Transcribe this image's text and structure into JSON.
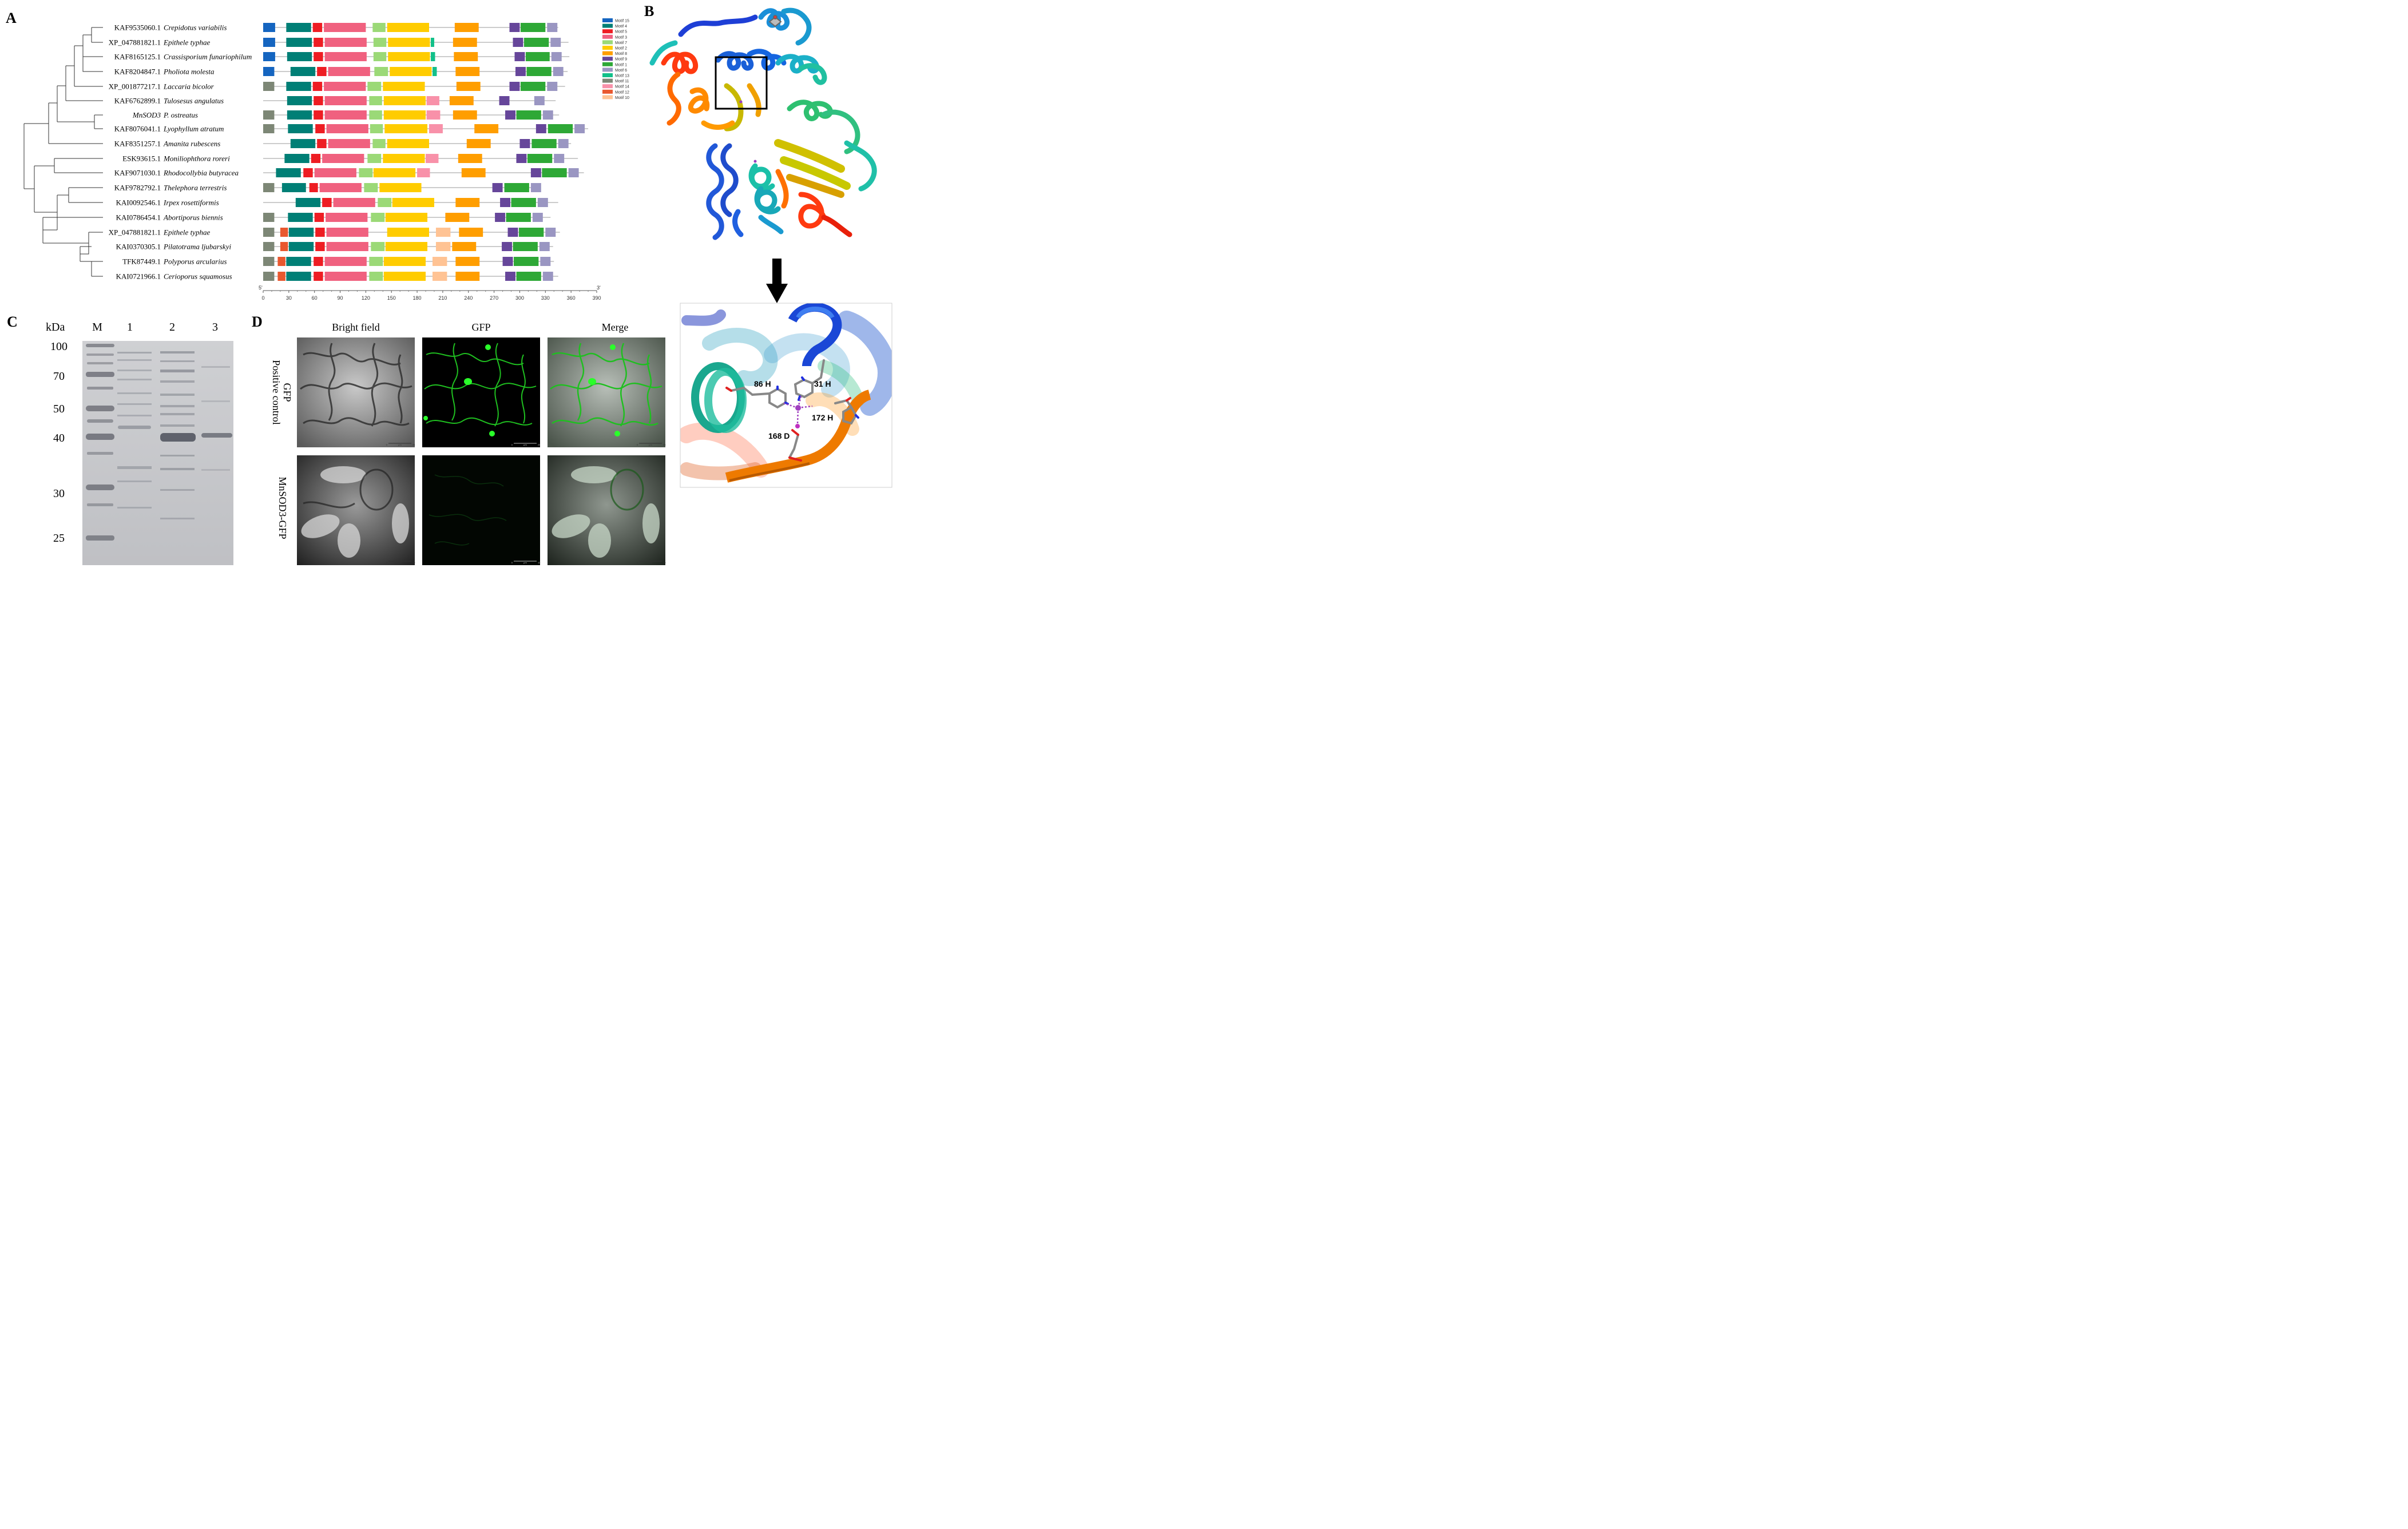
{
  "panels": {
    "A": "A",
    "B": "B",
    "C": "C",
    "D": "D"
  },
  "motif_legend": [
    {
      "label": "Motif 15",
      "color": "#1565c0"
    },
    {
      "label": "Motif 4",
      "color": "#007f76"
    },
    {
      "label": "Motif 5",
      "color": "#ee1d23"
    },
    {
      "label": "Motif 3",
      "color": "#f0617f"
    },
    {
      "label": "Motif 7",
      "color": "#9bd977"
    },
    {
      "label": "Motif 2",
      "color": "#ffcc00"
    },
    {
      "label": "Motif 8",
      "color": "#ff9e00"
    },
    {
      "label": "Motif 9",
      "color": "#66469a"
    },
    {
      "label": "Motif 1",
      "color": "#2ea836"
    },
    {
      "label": "Motif 6",
      "color": "#9a96c2"
    },
    {
      "label": "Motif 13",
      "color": "#12c08a"
    },
    {
      "label": "Motif 11",
      "color": "#7d8776"
    },
    {
      "label": "Motif 14",
      "color": "#f891a9"
    },
    {
      "label": "Motif 12",
      "color": "#e9582f"
    },
    {
      "label": "Motif 10",
      "color": "#ffc394"
    }
  ],
  "species": [
    {
      "acc": "KAF9535060.1",
      "name": "Crepidotus variabilis"
    },
    {
      "acc": "XP_047881821.1",
      "name": "Epithele typhae"
    },
    {
      "acc": "KAF8165125.1",
      "name": "Crassisporium funariophilum"
    },
    {
      "acc": "KAF8204847.1",
      "name": "Pholiota molesta"
    },
    {
      "acc": "XP_001877217.1",
      "name": "Laccaria bicolor"
    },
    {
      "acc": "KAF6762899.1",
      "name": "Tulosesus angulatus"
    },
    {
      "acc": "MnSOD3",
      "name": "P. ostreatus"
    },
    {
      "acc": "KAF8076041.1",
      "name": "Lyophyllum atratum"
    },
    {
      "acc": "KAF8351257.1",
      "name": "Amanita rubescens"
    },
    {
      "acc": "ESK93615.1",
      "name": "Moniliophthora roreri"
    },
    {
      "acc": "KAF9071030.1",
      "name": "Rhodocollybia butyracea"
    },
    {
      "acc": "KAF9782792.1",
      "name": "Thelephora terrestris"
    },
    {
      "acc": "KAI0092546.1",
      "name": "Irpex rosettiformis"
    },
    {
      "acc": "KAI0786454.1",
      "name": "Abortiporus biennis"
    },
    {
      "acc": "XP_047881821.1",
      "name": "Epithele typhae"
    },
    {
      "acc": "KAI0370305.1",
      "name": "Pilatotrama ljubarskyi"
    },
    {
      "acc": "TFK87449.1",
      "name": "Polyporus arcularius"
    },
    {
      "acc": "KAI0721966.1",
      "name": "Cerioporus squamosus"
    }
  ],
  "motif_rows": [
    {
      "end": 345,
      "m": [
        [
          0,
          14,
          "#1565c0"
        ],
        [
          27,
          56,
          "#007f76"
        ],
        [
          58,
          69,
          "#ee1d23"
        ],
        [
          71,
          120,
          "#f0617f"
        ],
        [
          128,
          143,
          "#9bd977"
        ],
        [
          145,
          194,
          "#ffcc00"
        ],
        [
          224,
          252,
          "#ff9e00"
        ],
        [
          288,
          300,
          "#66469a"
        ],
        [
          301,
          330,
          "#2ea836"
        ],
        [
          332,
          344,
          "#9a96c2"
        ]
      ]
    },
    {
      "end": 357,
      "m": [
        [
          0,
          14,
          "#1565c0"
        ],
        [
          27,
          57,
          "#007f76"
        ],
        [
          59,
          70,
          "#ee1d23"
        ],
        [
          72,
          121,
          "#f0617f"
        ],
        [
          129,
          144,
          "#9bd977"
        ],
        [
          146,
          195,
          "#ffcc00"
        ],
        [
          196,
          200,
          "#12c08a"
        ],
        [
          222,
          250,
          "#ff9e00"
        ],
        [
          292,
          304,
          "#66469a"
        ],
        [
          305,
          334,
          "#2ea836"
        ],
        [
          336,
          348,
          "#9a96c2"
        ]
      ]
    },
    {
      "end": 358,
      "m": [
        [
          0,
          14,
          "#1565c0"
        ],
        [
          28,
          57,
          "#007f76"
        ],
        [
          59,
          70,
          "#ee1d23"
        ],
        [
          72,
          121,
          "#f0617f"
        ],
        [
          129,
          144,
          "#9bd977"
        ],
        [
          146,
          195,
          "#ffcc00"
        ],
        [
          196,
          201,
          "#12c08a"
        ],
        [
          223,
          251,
          "#ff9e00"
        ],
        [
          294,
          306,
          "#66469a"
        ],
        [
          307,
          335,
          "#2ea836"
        ],
        [
          337,
          349,
          "#9a96c2"
        ]
      ]
    },
    {
      "end": 356,
      "m": [
        [
          0,
          13,
          "#1565c0"
        ],
        [
          32,
          61,
          "#007f76"
        ],
        [
          63,
          74,
          "#ee1d23"
        ],
        [
          76,
          125,
          "#f0617f"
        ],
        [
          130,
          146,
          "#9bd977"
        ],
        [
          148,
          197,
          "#ffcc00"
        ],
        [
          198,
          203,
          "#12c08a"
        ],
        [
          225,
          253,
          "#ff9e00"
        ],
        [
          295,
          307,
          "#66469a"
        ],
        [
          308,
          337,
          "#2ea836"
        ],
        [
          339,
          351,
          "#9a96c2"
        ]
      ]
    },
    {
      "end": 353,
      "m": [
        [
          0,
          13,
          "#7d8776"
        ],
        [
          27,
          56,
          "#007f76"
        ],
        [
          58,
          69,
          "#ee1d23"
        ],
        [
          71,
          120,
          "#f0617f"
        ],
        [
          122,
          138,
          "#9bd977"
        ],
        [
          140,
          189,
          "#ffcc00"
        ],
        [
          226,
          254,
          "#ff9e00"
        ],
        [
          288,
          300,
          "#66469a"
        ],
        [
          301,
          330,
          "#2ea836"
        ],
        [
          332,
          344,
          "#9a96c2"
        ]
      ]
    },
    {
      "end": 342,
      "m": [
        [
          28,
          57,
          "#007f76"
        ],
        [
          59,
          70,
          "#ee1d23"
        ],
        [
          72,
          121,
          "#f0617f"
        ],
        [
          124,
          139,
          "#9bd977"
        ],
        [
          141,
          190,
          "#ffcc00"
        ],
        [
          191,
          206,
          "#f891a9"
        ],
        [
          218,
          246,
          "#ff9e00"
        ],
        [
          276,
          288,
          "#66469a"
        ],
        [
          317,
          329,
          "#9a96c2"
        ]
      ]
    },
    {
      "end": 346,
      "m": [
        [
          0,
          13,
          "#7d8776"
        ],
        [
          28,
          57,
          "#007f76"
        ],
        [
          59,
          70,
          "#ee1d23"
        ],
        [
          72,
          121,
          "#f0617f"
        ],
        [
          124,
          139,
          "#9bd977"
        ],
        [
          141,
          190,
          "#ffcc00"
        ],
        [
          191,
          207,
          "#f891a9"
        ],
        [
          222,
          250,
          "#ff9e00"
        ],
        [
          283,
          295,
          "#66469a"
        ],
        [
          296,
          325,
          "#2ea836"
        ],
        [
          327,
          339,
          "#9a96c2"
        ]
      ]
    },
    {
      "end": 380,
      "m": [
        [
          0,
          13,
          "#7d8776"
        ],
        [
          29,
          58,
          "#007f76"
        ],
        [
          61,
          72,
          "#ee1d23"
        ],
        [
          74,
          123,
          "#f0617f"
        ],
        [
          125,
          140,
          "#9bd977"
        ],
        [
          142,
          192,
          "#ffcc00"
        ],
        [
          194,
          210,
          "#f891a9"
        ],
        [
          247,
          275,
          "#ff9e00"
        ],
        [
          319,
          331,
          "#66469a"
        ],
        [
          333,
          362,
          "#2ea836"
        ],
        [
          364,
          376,
          "#9a96c2"
        ]
      ]
    },
    {
      "end": 360,
      "m": [
        [
          32,
          61,
          "#007f76"
        ],
        [
          63,
          74,
          "#ee1d23"
        ],
        [
          76,
          125,
          "#f0617f"
        ],
        [
          128,
          143,
          "#9bd977"
        ],
        [
          145,
          194,
          "#ffcc00"
        ],
        [
          238,
          266,
          "#ff9e00"
        ],
        [
          300,
          312,
          "#66469a"
        ],
        [
          314,
          343,
          "#2ea836"
        ],
        [
          345,
          357,
          "#9a96c2"
        ]
      ]
    },
    {
      "end": 368,
      "m": [
        [
          25,
          54,
          "#007f76"
        ],
        [
          56,
          67,
          "#ee1d23"
        ],
        [
          69,
          118,
          "#f0617f"
        ],
        [
          122,
          138,
          "#9bd977"
        ],
        [
          140,
          189,
          "#ffcc00"
        ],
        [
          190,
          205,
          "#f891a9"
        ],
        [
          228,
          256,
          "#ff9e00"
        ],
        [
          296,
          308,
          "#66469a"
        ],
        [
          309,
          338,
          "#2ea836"
        ],
        [
          340,
          352,
          "#9a96c2"
        ]
      ]
    },
    {
      "end": 375,
      "m": [
        [
          15,
          44,
          "#007f76"
        ],
        [
          47,
          58,
          "#ee1d23"
        ],
        [
          60,
          109,
          "#f0617f"
        ],
        [
          112,
          128,
          "#9bd977"
        ],
        [
          129,
          178,
          "#ffcc00"
        ],
        [
          180,
          195,
          "#f891a9"
        ],
        [
          232,
          260,
          "#ff9e00"
        ],
        [
          313,
          325,
          "#66469a"
        ],
        [
          326,
          355,
          "#2ea836"
        ],
        [
          357,
          369,
          "#9a96c2"
        ]
      ]
    },
    {
      "end": 323,
      "m": [
        [
          0,
          13,
          "#7d8776"
        ],
        [
          22,
          50,
          "#007f76"
        ],
        [
          54,
          64,
          "#ee1d23"
        ],
        [
          66,
          115,
          "#f0617f"
        ],
        [
          118,
          134,
          "#9bd977"
        ],
        [
          136,
          185,
          "#ffcc00"
        ],
        [
          268,
          280,
          "#66469a"
        ],
        [
          282,
          311,
          "#2ea836"
        ],
        [
          313,
          325,
          "#9a96c2"
        ]
      ]
    },
    {
      "end": 345,
      "m": [
        [
          38,
          67,
          "#007f76"
        ],
        [
          69,
          80,
          "#ee1d23"
        ],
        [
          82,
          131,
          "#f0617f"
        ],
        [
          134,
          150,
          "#9bd977"
        ],
        [
          151,
          200,
          "#ffcc00"
        ],
        [
          225,
          253,
          "#ff9e00"
        ],
        [
          277,
          289,
          "#66469a"
        ],
        [
          290,
          319,
          "#2ea836"
        ],
        [
          321,
          333,
          "#9a96c2"
        ]
      ]
    },
    {
      "end": 336,
      "m": [
        [
          0,
          13,
          "#7d8776"
        ],
        [
          29,
          58,
          "#007f76"
        ],
        [
          60,
          71,
          "#ee1d23"
        ],
        [
          73,
          122,
          "#f0617f"
        ],
        [
          126,
          142,
          "#9bd977"
        ],
        [
          143,
          192,
          "#ffcc00"
        ],
        [
          213,
          241,
          "#ff9e00"
        ],
        [
          271,
          283,
          "#66469a"
        ],
        [
          284,
          313,
          "#2ea836"
        ],
        [
          315,
          327,
          "#9a96c2"
        ]
      ]
    },
    {
      "end": 347,
      "m": [
        [
          0,
          13,
          "#7d8776"
        ],
        [
          20,
          29,
          "#e9582f"
        ],
        [
          30,
          59,
          "#007f76"
        ],
        [
          61,
          72,
          "#ee1d23"
        ],
        [
          74,
          123,
          "#f0617f"
        ],
        [
          145,
          194,
          "#ffcc00"
        ],
        [
          202,
          219,
          "#ffc394"
        ],
        [
          229,
          257,
          "#ff9e00"
        ],
        [
          286,
          298,
          "#66469a"
        ],
        [
          299,
          328,
          "#2ea836"
        ],
        [
          330,
          342,
          "#9a96c2"
        ]
      ]
    },
    {
      "end": 339,
      "m": [
        [
          0,
          13,
          "#7d8776"
        ],
        [
          20,
          29,
          "#e9582f"
        ],
        [
          30,
          59,
          "#007f76"
        ],
        [
          61,
          72,
          "#ee1d23"
        ],
        [
          74,
          123,
          "#f0617f"
        ],
        [
          126,
          142,
          "#9bd977"
        ],
        [
          143,
          192,
          "#ffcc00"
        ],
        [
          202,
          219,
          "#ffc394"
        ],
        [
          221,
          249,
          "#ff9e00"
        ],
        [
          279,
          291,
          "#66469a"
        ],
        [
          292,
          321,
          "#2ea836"
        ],
        [
          323,
          335,
          "#9a96c2"
        ]
      ]
    },
    {
      "end": 340,
      "m": [
        [
          0,
          13,
          "#7d8776"
        ],
        [
          17,
          26,
          "#e9582f"
        ],
        [
          27,
          56,
          "#007f76"
        ],
        [
          59,
          70,
          "#ee1d23"
        ],
        [
          72,
          121,
          "#f0617f"
        ],
        [
          124,
          140,
          "#9bd977"
        ],
        [
          141,
          190,
          "#ffcc00"
        ],
        [
          198,
          215,
          "#ffc394"
        ],
        [
          225,
          253,
          "#ff9e00"
        ],
        [
          280,
          292,
          "#66469a"
        ],
        [
          293,
          322,
          "#2ea836"
        ],
        [
          324,
          336,
          "#9a96c2"
        ]
      ]
    },
    {
      "end": 345,
      "m": [
        [
          0,
          13,
          "#7d8776"
        ],
        [
          17,
          26,
          "#e9582f"
        ],
        [
          27,
          56,
          "#007f76"
        ],
        [
          59,
          70,
          "#ee1d23"
        ],
        [
          72,
          121,
          "#f0617f"
        ],
        [
          124,
          140,
          "#9bd977"
        ],
        [
          141,
          190,
          "#ffcc00"
        ],
        [
          198,
          215,
          "#ffc394"
        ],
        [
          225,
          253,
          "#ff9e00"
        ],
        [
          283,
          295,
          "#66469a"
        ],
        [
          296,
          325,
          "#2ea836"
        ],
        [
          327,
          339,
          "#9a96c2"
        ]
      ]
    }
  ],
  "axis": {
    "ticks": [
      "0",
      "30",
      "60",
      "90",
      "120",
      "150",
      "180",
      "210",
      "240",
      "270",
      "300",
      "330",
      "360",
      "390"
    ],
    "five_prime": "5'",
    "three_prime": "3'"
  },
  "structure": {
    "residues": [
      "86 H",
      "31 H",
      "172 H",
      "168 D"
    ]
  },
  "gel": {
    "kda": "kDa",
    "lanes": [
      "M",
      "1",
      "2",
      "3"
    ],
    "markers": [
      "100",
      "70",
      "50",
      "40",
      "30",
      "25"
    ]
  },
  "microscopy": {
    "columns": [
      "Bright field",
      "GFP",
      "Merge"
    ],
    "rows": [
      {
        "line1": "GFP",
        "line2": "Positive control"
      },
      {
        "line1": "MnSOD3-GFP",
        "line2": ""
      }
    ],
    "scale_unit": "μm",
    "scale_top": "25",
    "scale_bottom": "10",
    "scale_zero": "0"
  }
}
